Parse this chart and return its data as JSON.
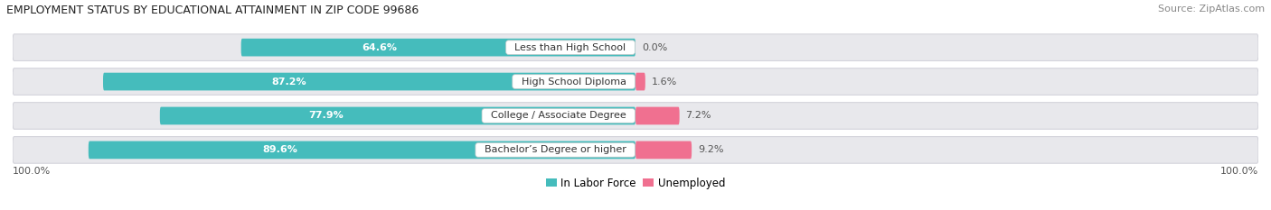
{
  "title": "EMPLOYMENT STATUS BY EDUCATIONAL ATTAINMENT IN ZIP CODE 99686",
  "source": "Source: ZipAtlas.com",
  "categories": [
    "Less than High School",
    "High School Diploma",
    "College / Associate Degree",
    "Bachelor’s Degree or higher"
  ],
  "labor_force": [
    64.6,
    87.2,
    77.9,
    89.6
  ],
  "unemployed": [
    0.0,
    1.6,
    7.2,
    9.2
  ],
  "labor_force_color": "#45BCBC",
  "unemployed_color": "#F07090",
  "row_bg_color": "#E8E8EC",
  "row_edge_color": "#D0D0D8",
  "x_left_label": "100.0%",
  "x_right_label": "100.0%",
  "legend_labor": "In Labor Force",
  "legend_unemployed": "Unemployed",
  "title_fontsize": 9,
  "source_fontsize": 8,
  "bar_label_fontsize": 8,
  "cat_label_fontsize": 8,
  "pct_label_fontsize": 8,
  "axis_label_fontsize": 8
}
